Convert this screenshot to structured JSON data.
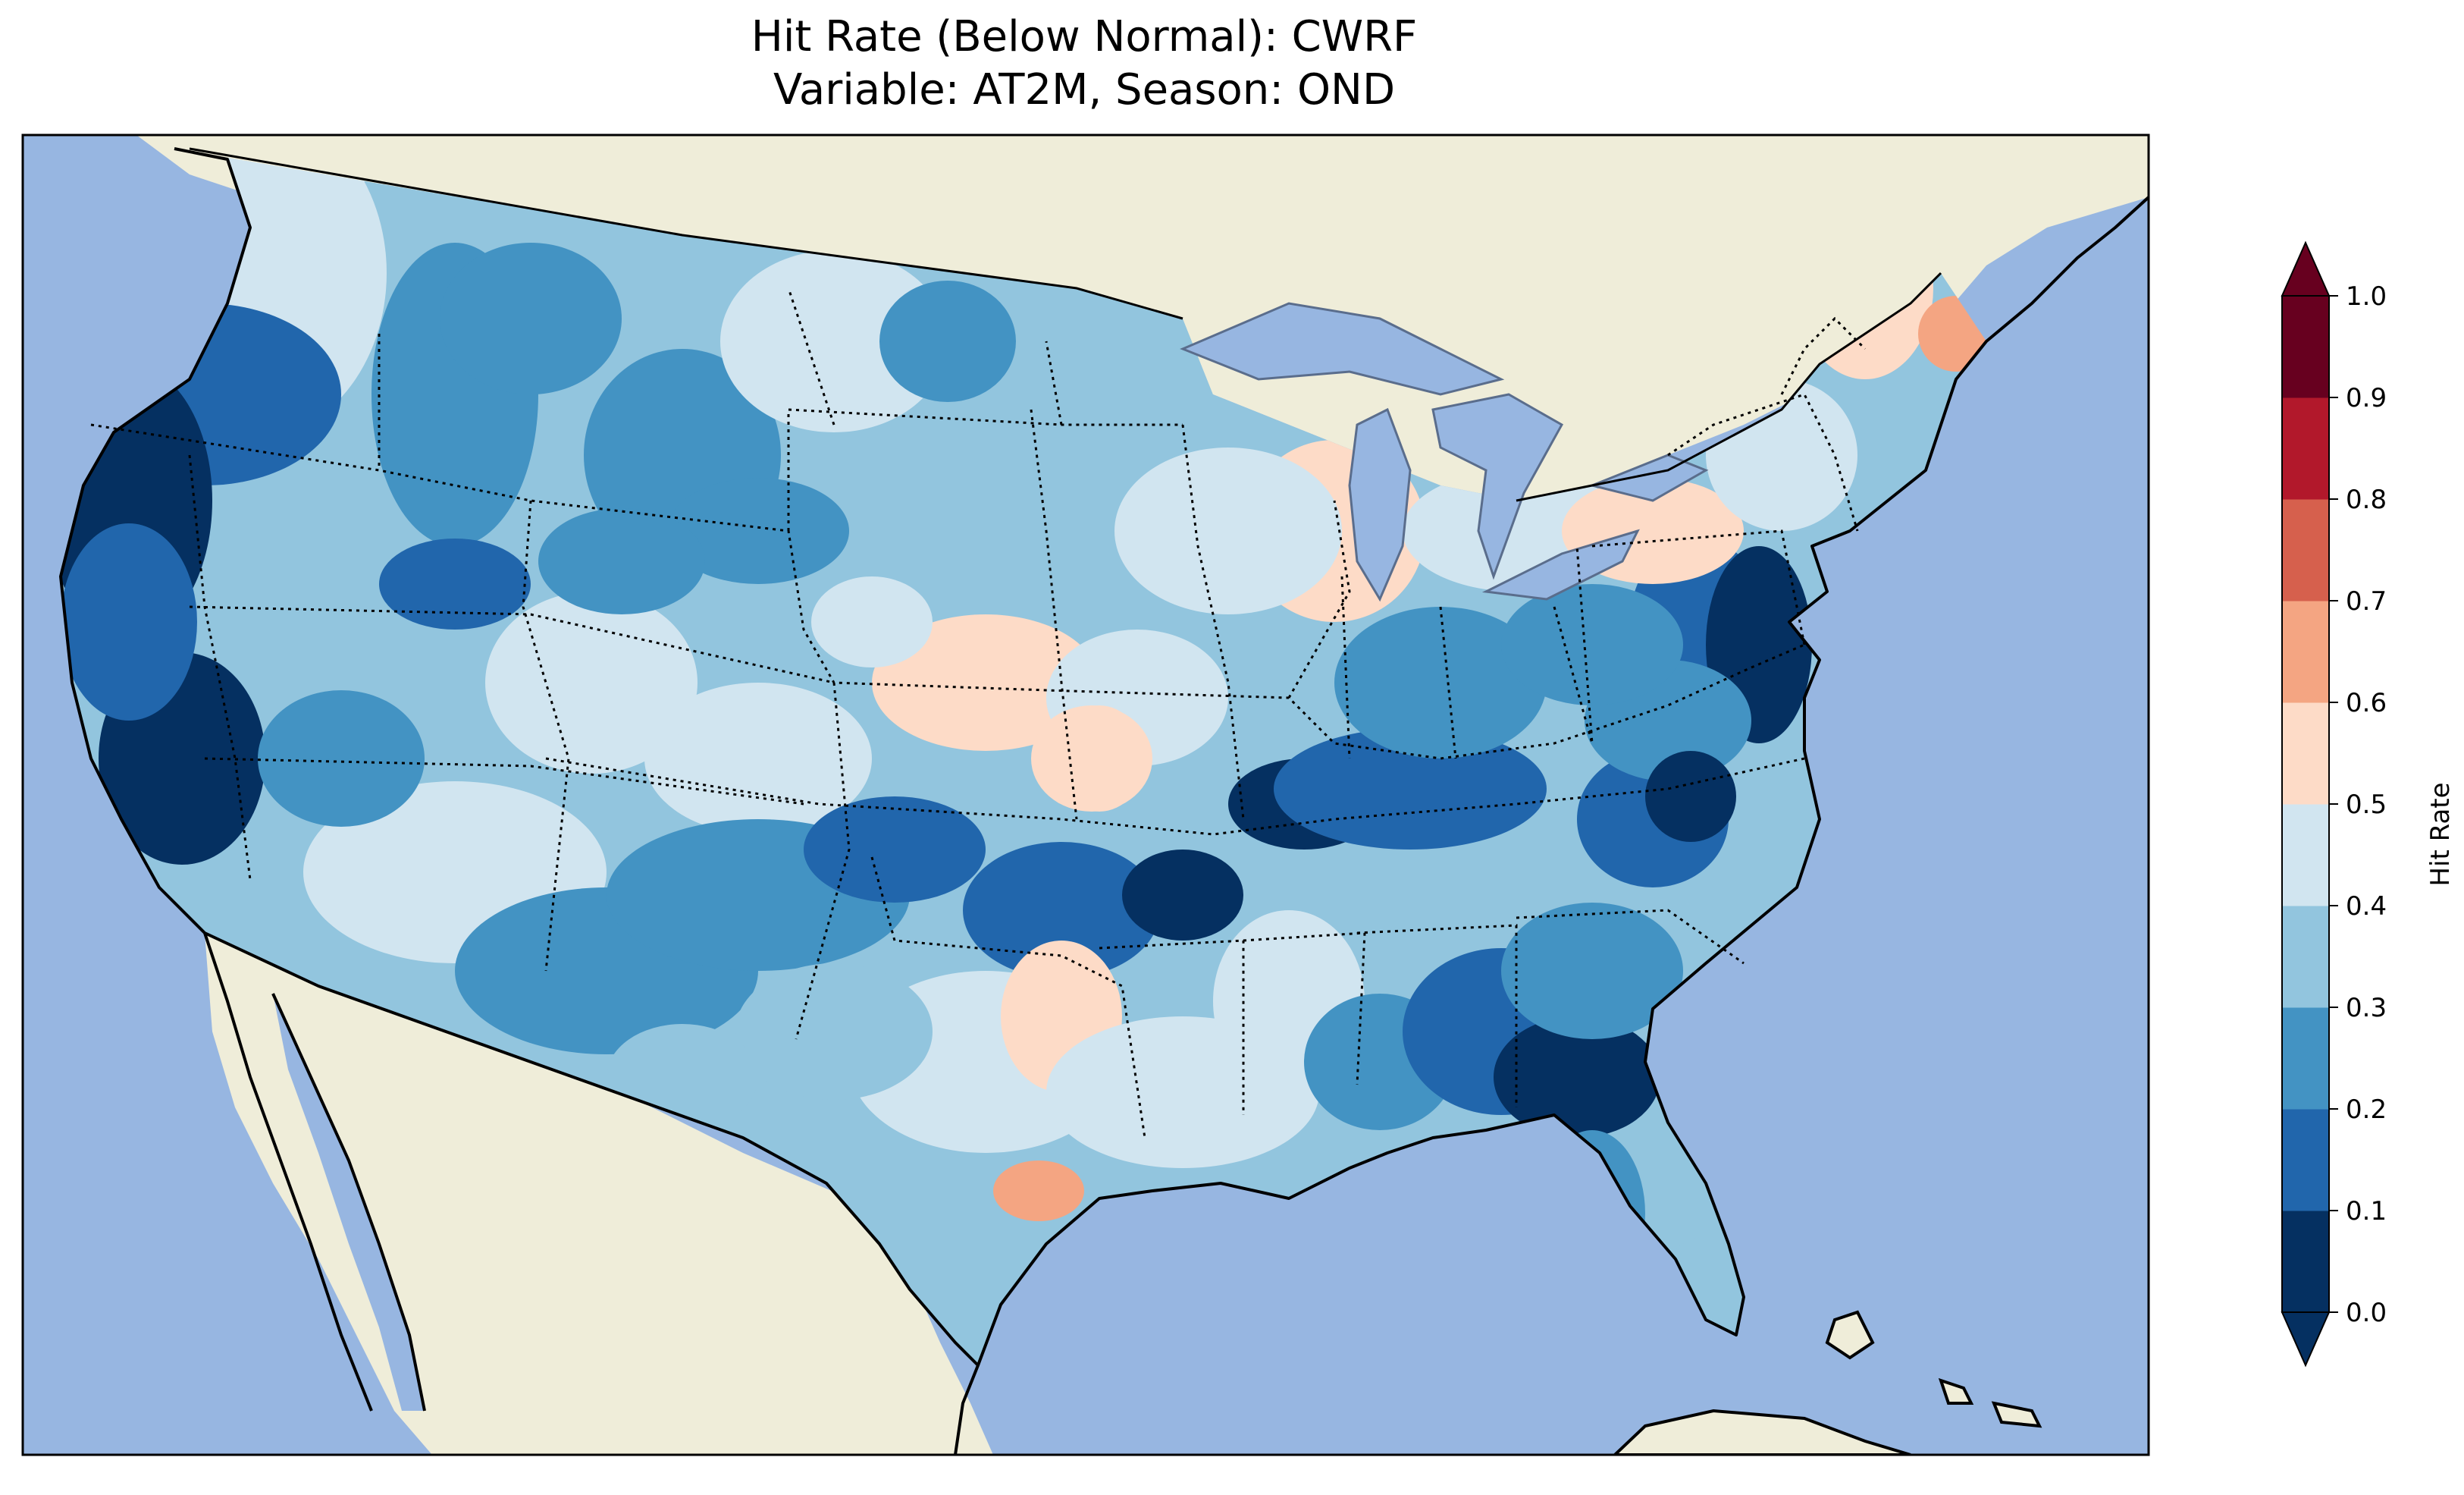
{
  "title": {
    "line1": "Hit Rate (Below Normal): CWRF",
    "line2": "Variable: AT2M, Season: OND"
  },
  "colorbar": {
    "label": "Hit Rate",
    "ticks": [
      "0.0",
      "0.1",
      "0.2",
      "0.3",
      "0.4",
      "0.5",
      "0.6",
      "0.7",
      "0.8",
      "0.9",
      "1.0"
    ],
    "colors": [
      "#053061",
      "#2166ac",
      "#4393c3",
      "#92c5de",
      "#d1e5f0",
      "#fddbc7",
      "#f4a582",
      "#d6604d",
      "#b2182b",
      "#67001f"
    ],
    "extend": "both"
  },
  "map": {
    "ocean_color": "#97b6e1",
    "land_color": "#efedd9",
    "overlays": [
      "coastlines",
      "state borders",
      "country borders",
      "lakes"
    ]
  }
}
